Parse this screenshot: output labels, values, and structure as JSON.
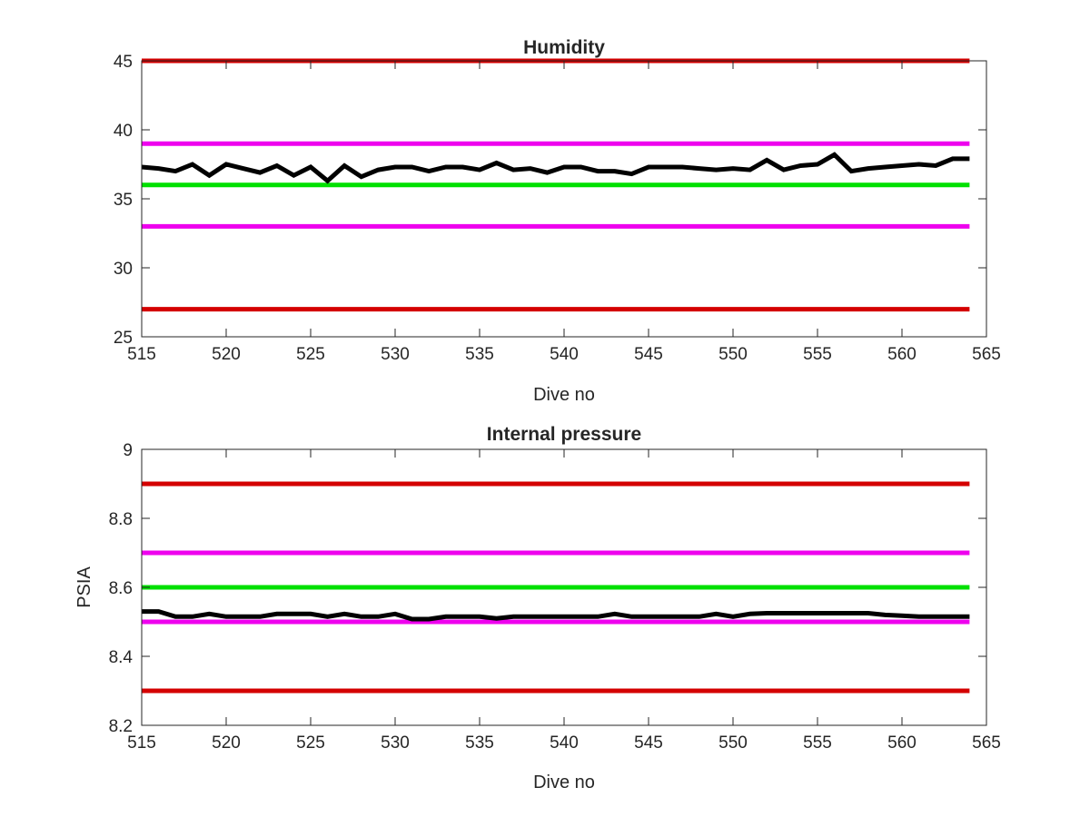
{
  "chart_data": [
    {
      "type": "line",
      "title": "Humidity",
      "xlabel": "Dive no",
      "ylabel": "",
      "xlim": [
        515,
        565
      ],
      "ylim": [
        25,
        45
      ],
      "xticks": [
        515,
        520,
        525,
        530,
        535,
        540,
        545,
        550,
        555,
        560,
        565
      ],
      "yticks": [
        25,
        30,
        35,
        40,
        45
      ],
      "ytick_labels": [
        "25",
        "30",
        "35",
        "40",
        "45"
      ],
      "grid": false,
      "thresholds": [
        {
          "value": 45,
          "color": "#d40000"
        },
        {
          "value": 39,
          "color": "#ee00ee"
        },
        {
          "value": 36,
          "color": "#00e000"
        },
        {
          "value": 33,
          "color": "#ee00ee"
        },
        {
          "value": 27,
          "color": "#d40000"
        }
      ],
      "series": [
        {
          "color": "#000000",
          "x": [
            515,
            516,
            517,
            518,
            519,
            520,
            521,
            522,
            523,
            524,
            525,
            526,
            527,
            528,
            529,
            530,
            531,
            532,
            533,
            534,
            535,
            536,
            537,
            538,
            539,
            540,
            541,
            542,
            543,
            544,
            545,
            546,
            547,
            548,
            549,
            550,
            551,
            552,
            553,
            554,
            555,
            556,
            557,
            558,
            559,
            560,
            561,
            562,
            563,
            564
          ],
          "y": [
            37.3,
            37.2,
            37.0,
            37.5,
            36.7,
            37.5,
            37.2,
            36.9,
            37.4,
            36.7,
            37.3,
            36.3,
            37.4,
            36.6,
            37.1,
            37.3,
            37.3,
            37.0,
            37.3,
            37.3,
            37.1,
            37.6,
            37.1,
            37.2,
            36.9,
            37.3,
            37.3,
            37.0,
            37.0,
            36.8,
            37.3,
            37.3,
            37.3,
            37.2,
            37.1,
            37.2,
            37.1,
            37.8,
            37.1,
            37.4,
            37.5,
            38.2,
            37.0,
            37.2,
            37.3,
            37.4,
            37.5,
            37.4,
            37.9,
            37.9
          ]
        }
      ]
    },
    {
      "type": "line",
      "title": "Internal pressure",
      "xlabel": "Dive no",
      "ylabel": "PSIA",
      "xlim": [
        515,
        565
      ],
      "ylim": [
        8.2,
        9
      ],
      "xticks": [
        515,
        520,
        525,
        530,
        535,
        540,
        545,
        550,
        555,
        560,
        565
      ],
      "yticks": [
        8.2,
        8.4,
        8.6,
        8.8,
        9
      ],
      "ytick_labels": [
        "8.2",
        "8.4",
        "8.6",
        "8.8",
        "9"
      ],
      "grid": false,
      "thresholds": [
        {
          "value": 8.9,
          "color": "#d40000"
        },
        {
          "value": 8.7,
          "color": "#ee00ee"
        },
        {
          "value": 8.6,
          "color": "#00e000"
        },
        {
          "value": 8.5,
          "color": "#ee00ee"
        },
        {
          "value": 8.3,
          "color": "#d40000"
        }
      ],
      "series": [
        {
          "color": "#000000",
          "x": [
            515,
            516,
            517,
            518,
            519,
            520,
            521,
            522,
            523,
            524,
            525,
            526,
            527,
            528,
            529,
            530,
            531,
            532,
            533,
            534,
            535,
            536,
            537,
            538,
            539,
            540,
            541,
            542,
            543,
            544,
            545,
            546,
            547,
            548,
            549,
            550,
            551,
            552,
            553,
            554,
            555,
            556,
            557,
            558,
            559,
            560,
            561,
            562,
            563,
            564
          ],
          "y": [
            8.53,
            8.53,
            8.515,
            8.515,
            8.523,
            8.515,
            8.515,
            8.515,
            8.523,
            8.523,
            8.523,
            8.515,
            8.523,
            8.515,
            8.515,
            8.523,
            8.508,
            8.508,
            8.515,
            8.515,
            8.515,
            8.51,
            8.515,
            8.515,
            8.515,
            8.515,
            8.515,
            8.515,
            8.523,
            8.515,
            8.515,
            8.515,
            8.515,
            8.515,
            8.523,
            8.515,
            8.523,
            8.525,
            8.525,
            8.525,
            8.525,
            8.525,
            8.525,
            8.525,
            8.52,
            8.518,
            8.515,
            8.515,
            8.515,
            8.515
          ]
        }
      ]
    }
  ]
}
